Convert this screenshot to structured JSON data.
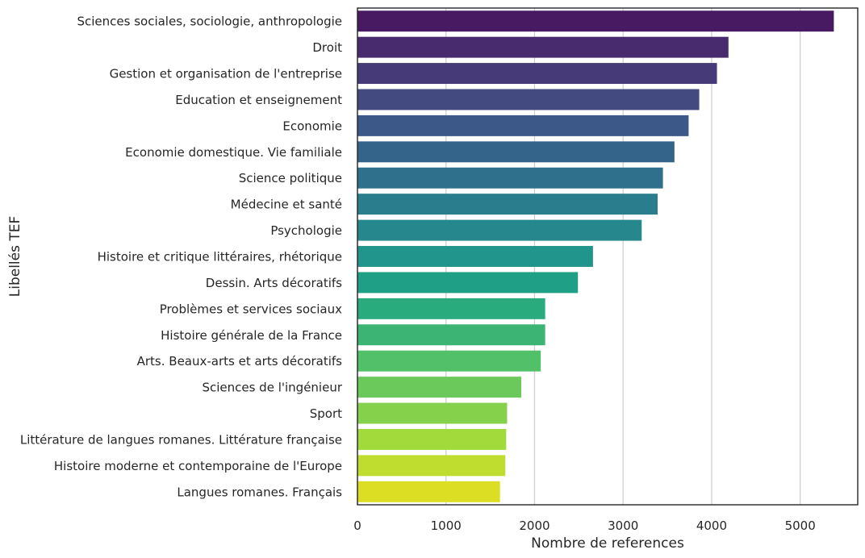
{
  "chart_data": {
    "type": "bar",
    "orientation": "horizontal",
    "xlabel": "Nombre de references",
    "ylabel": "Libellés TEF",
    "xlim": [
      0,
      5650
    ],
    "xticks": [
      0,
      1000,
      2000,
      3000,
      4000,
      5000
    ],
    "grid": "vertical",
    "palette": "viridis",
    "categories": [
      "Sciences sociales, sociologie, anthropologie",
      "Droit",
      "Gestion et organisation de l'entreprise",
      "Education et enseignement",
      "Economie",
      "Economie domestique. Vie familiale",
      "Science politique",
      "Médecine et santé",
      "Psychologie",
      "Histoire et critique littéraires, rhétorique",
      "Dessin. Arts décoratifs",
      "Problèmes et services sociaux",
      "Histoire générale de la France",
      "Arts. Beaux-arts et arts décoratifs",
      "Sciences de l'ingénieur",
      "Sport",
      "Littérature de langues romanes. Littérature française",
      "Histoire moderne et contemporaine de l'Europe",
      "Langues romanes. Français"
    ],
    "values": [
      5380,
      4190,
      4060,
      3860,
      3740,
      3580,
      3450,
      3390,
      3210,
      2660,
      2490,
      2120,
      2120,
      2070,
      1850,
      1690,
      1680,
      1670,
      1610
    ],
    "colors": [
      "#471a62",
      "#482a6e",
      "#463a78",
      "#424a80",
      "#3c5888",
      "#35648b",
      "#2f718d",
      "#2a7d8d",
      "#26888d",
      "#21948b",
      "#1fa086",
      "#29ab7e",
      "#3cb574",
      "#52bf69",
      "#6bc95b",
      "#86d14b",
      "#a2d93b",
      "#bfdd2e",
      "#dbde22"
    ]
  }
}
